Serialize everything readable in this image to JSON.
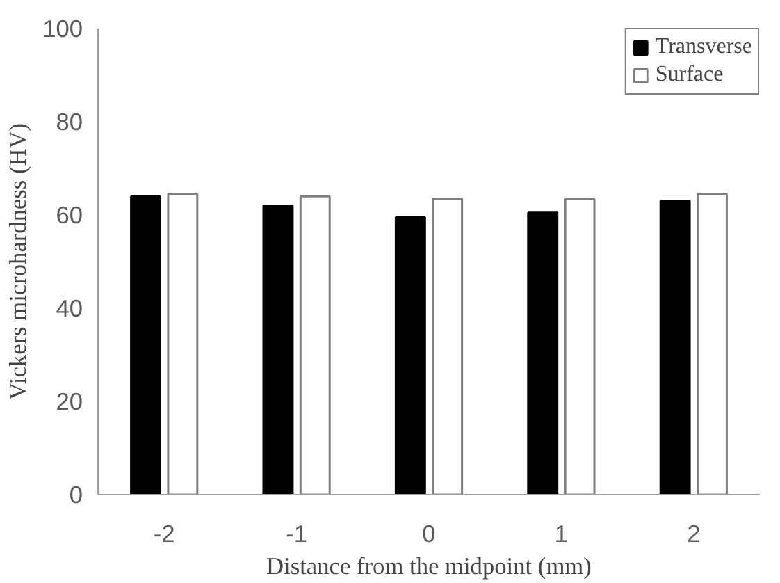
{
  "chart_data": {
    "type": "bar",
    "xlabel": "Distance from the midpoint (mm)",
    "ylabel": "Vickers microhardness (HV)",
    "categories": [
      "-2",
      "-1",
      "0",
      "1",
      "2"
    ],
    "series": [
      {
        "name": "Transverse",
        "color": "#000000",
        "values": [
          64,
          62,
          59.5,
          60.5,
          63
        ]
      },
      {
        "name": "Surface",
        "color": "#ffffff",
        "values": [
          64.5,
          64,
          63.5,
          63.5,
          64.5
        ]
      }
    ],
    "ylim": [
      0,
      100
    ],
    "yticks": [
      0,
      20,
      40,
      60,
      80,
      100
    ],
    "grid": false,
    "legend": "top right"
  }
}
